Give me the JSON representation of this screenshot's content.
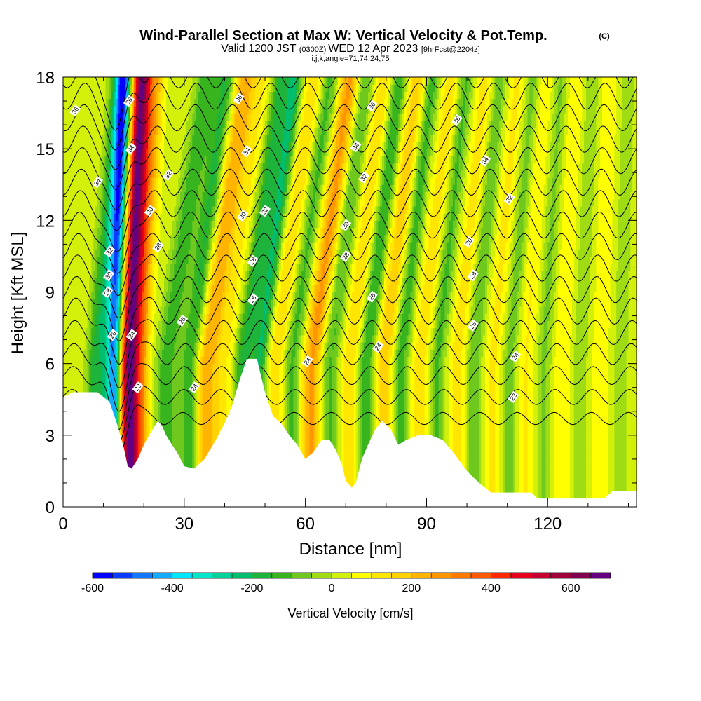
{
  "header": {
    "title_main": "Wind-Parallel Section at Max W: Vertical Velocity & Pot.Temp.",
    "copyright": "(C)",
    "valid_prefix": "Valid 1200 JST",
    "valid_utc": "(0300Z)",
    "valid_date": "WED 12 Apr 2023",
    "forecast_info": "[9hrFcst@2204z]"
  },
  "chart_data": {
    "type": "heatmap",
    "grid_info": "i,j,k,angle=71,74,24,75",
    "xlabel": "Distance [nm]",
    "ylabel": "Height [Kft MSL]",
    "xlim": [
      0,
      142
    ],
    "ylim": [
      0,
      18
    ],
    "xticks": [
      0,
      30,
      60,
      90,
      120
    ],
    "yticks": [
      0,
      3,
      6,
      9,
      12,
      15,
      18
    ],
    "colorbar": {
      "label": "Vertical Velocity [cm/s]",
      "min": -600,
      "max": 700,
      "step": 50,
      "tick_values": [
        -600,
        -400,
        -200,
        0,
        200,
        400,
        600
      ],
      "tick_labels": [
        "-600",
        "-400",
        "-200",
        "0",
        "200",
        "400",
        "600"
      ],
      "colors": [
        "#0000ff",
        "#0a3cff",
        "#1478ff",
        "#14aaff",
        "#00e6ff",
        "#00e6c8",
        "#00d29b",
        "#00be6e",
        "#1eb43c",
        "#37b41e",
        "#6ec81e",
        "#a0dc14",
        "#d2f00a",
        "#ffff00",
        "#ffe600",
        "#ffd200",
        "#ffb400",
        "#ff9600",
        "#ff7800",
        "#ff5a00",
        "#ff2800",
        "#e6001e",
        "#c80032",
        "#a0003c",
        "#820050",
        "#640082"
      ]
    },
    "velocity_waves": [
      {
        "x": 16.5,
        "amp": 640,
        "width": 2.4,
        "tilt": 0.25
      },
      {
        "x": 12.5,
        "amp": -460,
        "width": 1.8,
        "tilt": 0.2
      },
      {
        "x": 8.5,
        "amp": -220,
        "width": 3.0,
        "tilt": 0.5
      },
      {
        "x": 4.5,
        "amp": 30,
        "width": 2.0,
        "tilt": 0.6
      },
      {
        "x": 19.5,
        "amp": 180,
        "width": 2.0,
        "tilt": 0.3
      },
      {
        "x": 25.5,
        "amp": -170,
        "width": 2.5,
        "tilt": 0.85
      },
      {
        "x": 31.5,
        "amp": -210,
        "width": 2.4,
        "tilt": 0.75
      },
      {
        "x": 35.5,
        "amp": 230,
        "width": 3.2,
        "tilt": 0.8
      },
      {
        "x": 40.5,
        "amp": 60,
        "width": 2.0,
        "tilt": 0.8
      },
      {
        "x": 44.5,
        "amp": -200,
        "width": 2.2,
        "tilt": 0.8
      },
      {
        "x": 48.5,
        "amp": -230,
        "width": 2.0,
        "tilt": 0.75
      },
      {
        "x": 52.5,
        "amp": 130,
        "width": 2.6,
        "tilt": 0.8
      },
      {
        "x": 56.5,
        "amp": -150,
        "width": 2.2,
        "tilt": 0.8
      },
      {
        "x": 61.5,
        "amp": 240,
        "width": 2.6,
        "tilt": 0.8
      },
      {
        "x": 66.0,
        "amp": -140,
        "width": 2.2,
        "tilt": 0.75
      },
      {
        "x": 71.0,
        "amp": 120,
        "width": 2.4,
        "tilt": 0.7
      },
      {
        "x": 75.0,
        "amp": -190,
        "width": 2.0,
        "tilt": 0.7
      },
      {
        "x": 79.5,
        "amp": 160,
        "width": 2.6,
        "tilt": 0.7
      },
      {
        "x": 83.5,
        "amp": -170,
        "width": 2.0,
        "tilt": 0.65
      },
      {
        "x": 88.5,
        "amp": 110,
        "width": 2.6,
        "tilt": 0.65
      },
      {
        "x": 92.5,
        "amp": -150,
        "width": 2.0,
        "tilt": 0.6
      },
      {
        "x": 97.5,
        "amp": 100,
        "width": 2.6,
        "tilt": 0.6
      },
      {
        "x": 101.5,
        "amp": -130,
        "width": 2.0,
        "tilt": 0.55
      },
      {
        "x": 106.5,
        "amp": 90,
        "width": 2.4,
        "tilt": 0.5
      },
      {
        "x": 110.5,
        "amp": -110,
        "width": 2.0,
        "tilt": 0.5
      },
      {
        "x": 114.5,
        "amp": 80,
        "width": 2.4,
        "tilt": 0.4
      },
      {
        "x": 119.0,
        "amp": -90,
        "width": 2.0,
        "tilt": 0.35
      },
      {
        "x": 123.5,
        "amp": 70,
        "width": 2.4,
        "tilt": 0.3
      },
      {
        "x": 128.0,
        "amp": -70,
        "width": 2.0,
        "tilt": 0.25
      },
      {
        "x": 133.0,
        "amp": 60,
        "width": 2.4,
        "tilt": 0.2
      },
      {
        "x": 138.0,
        "amp": -50,
        "width": 2.0,
        "tilt": 0.15
      }
    ],
    "terrain": [
      [
        0,
        4.6
      ],
      [
        2.5,
        4.8
      ],
      [
        8.5,
        4.8
      ],
      [
        11.5,
        4.4
      ],
      [
        12.5,
        3.9
      ],
      [
        13.5,
        3.4
      ],
      [
        15.0,
        2.5
      ],
      [
        16.0,
        1.7
      ],
      [
        17.0,
        1.6
      ],
      [
        18.5,
        2.0
      ],
      [
        20.0,
        2.6
      ],
      [
        22.0,
        3.2
      ],
      [
        23.5,
        3.6
      ],
      [
        24.5,
        3.4
      ],
      [
        25.5,
        3.0
      ],
      [
        27.0,
        2.6
      ],
      [
        28.5,
        2.2
      ],
      [
        30.0,
        1.7
      ],
      [
        32.5,
        1.6
      ],
      [
        35.0,
        2.0
      ],
      [
        37.5,
        2.7
      ],
      [
        40.0,
        3.5
      ],
      [
        42.0,
        4.3
      ],
      [
        43.5,
        5.2
      ],
      [
        45.5,
        6.2
      ],
      [
        48.0,
        6.2
      ],
      [
        50.0,
        4.8
      ],
      [
        52.0,
        3.8
      ],
      [
        54.0,
        3.5
      ],
      [
        56.0,
        3.0
      ],
      [
        58.0,
        2.6
      ],
      [
        60.0,
        2.0
      ],
      [
        62.0,
        2.3
      ],
      [
        64.0,
        2.8
      ],
      [
        66.0,
        2.8
      ],
      [
        67.5,
        2.4
      ],
      [
        69.0,
        1.8
      ],
      [
        70.0,
        1.1
      ],
      [
        71.5,
        0.8
      ],
      [
        72.5,
        1.0
      ],
      [
        74.0,
        2.0
      ],
      [
        75.5,
        2.6
      ],
      [
        77.5,
        3.3
      ],
      [
        79.0,
        3.6
      ],
      [
        81.0,
        3.3
      ],
      [
        83.0,
        2.6
      ],
      [
        85.0,
        2.8
      ],
      [
        88.0,
        3.0
      ],
      [
        91.0,
        3.0
      ],
      [
        94.0,
        2.8
      ],
      [
        97.0,
        2.2
      ],
      [
        100.0,
        1.5
      ],
      [
        103.0,
        1.0
      ],
      [
        106.0,
        0.6
      ],
      [
        108.0,
        0.6
      ],
      [
        116.0,
        0.6
      ],
      [
        117.5,
        0.35
      ],
      [
        126.0,
        0.35
      ],
      [
        134.0,
        0.35
      ],
      [
        136.0,
        0.65
      ],
      [
        142,
        0.65
      ]
    ],
    "theta_levels_C": [
      21,
      22,
      23,
      24,
      25,
      26,
      27,
      28,
      29,
      30,
      31,
      32,
      33,
      34,
      35,
      36,
      37
    ],
    "contour_labels": [
      {
        "text": "36",
        "x": 3.0,
        "y": 16.6
      },
      {
        "text": "34",
        "x": 8.5,
        "y": 13.6
      },
      {
        "text": "32",
        "x": 11.5,
        "y": 10.7
      },
      {
        "text": "30",
        "x": 11.3,
        "y": 9.7
      },
      {
        "text": "28",
        "x": 11.0,
        "y": 9.0
      },
      {
        "text": "26",
        "x": 12.3,
        "y": 7.2
      },
      {
        "text": "36",
        "x": 16.3,
        "y": 17.0
      },
      {
        "text": "34",
        "x": 16.8,
        "y": 15.0
      },
      {
        "text": "24",
        "x": 17.0,
        "y": 7.2
      },
      {
        "text": "22",
        "x": 18.5,
        "y": 5.0
      },
      {
        "text": "32",
        "x": 26.0,
        "y": 13.9
      },
      {
        "text": "30",
        "x": 21.5,
        "y": 12.4
      },
      {
        "text": "28",
        "x": 23.5,
        "y": 10.9
      },
      {
        "text": "26",
        "x": 29.5,
        "y": 7.8
      },
      {
        "text": "24",
        "x": 32.5,
        "y": 5.0
      },
      {
        "text": "36",
        "x": 43.5,
        "y": 17.1
      },
      {
        "text": "34",
        "x": 45.5,
        "y": 14.9
      },
      {
        "text": "30",
        "x": 44.5,
        "y": 12.2
      },
      {
        "text": "32",
        "x": 50.0,
        "y": 12.4
      },
      {
        "text": "28",
        "x": 47.0,
        "y": 10.3
      },
      {
        "text": "26",
        "x": 47.0,
        "y": 8.7
      },
      {
        "text": "24",
        "x": 60.5,
        "y": 6.1
      },
      {
        "text": "36",
        "x": 76.5,
        "y": 16.8
      },
      {
        "text": "34",
        "x": 72.5,
        "y": 15.1
      },
      {
        "text": "32",
        "x": 74.5,
        "y": 13.8
      },
      {
        "text": "30",
        "x": 70.0,
        "y": 11.8
      },
      {
        "text": "28",
        "x": 70.0,
        "y": 10.5
      },
      {
        "text": "26",
        "x": 76.5,
        "y": 8.8
      },
      {
        "text": "24",
        "x": 78.0,
        "y": 6.7
      },
      {
        "text": "36",
        "x": 97.5,
        "y": 16.2
      },
      {
        "text": "34",
        "x": 104.5,
        "y": 14.5
      },
      {
        "text": "32",
        "x": 110.5,
        "y": 12.9
      },
      {
        "text": "30",
        "x": 100.5,
        "y": 11.1
      },
      {
        "text": "28",
        "x": 101.5,
        "y": 9.7
      },
      {
        "text": "26",
        "x": 101.5,
        "y": 7.6
      },
      {
        "text": "24",
        "x": 112.0,
        "y": 6.3
      },
      {
        "text": "22",
        "x": 111.5,
        "y": 4.6
      }
    ]
  }
}
